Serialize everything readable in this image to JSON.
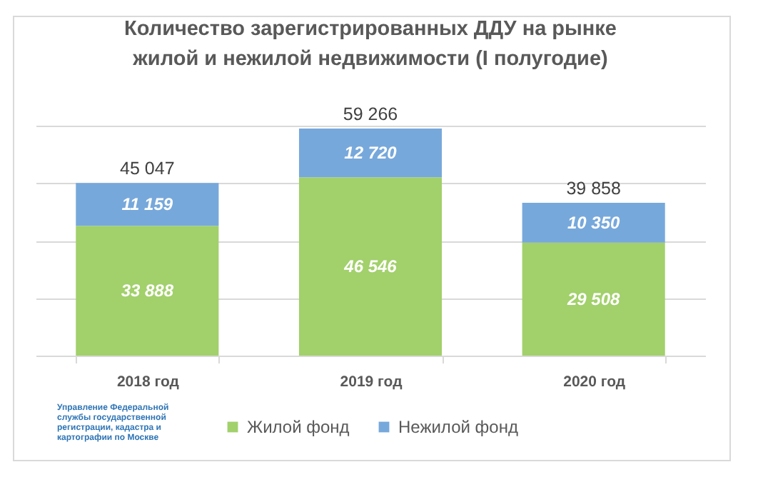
{
  "chart_data": {
    "type": "bar",
    "title": "Количество зарегистрированных ДДУ на рынке жилой и нежилой недвижимости (I полугодие)",
    "categories": [
      "2018 год",
      "2019 год",
      "2020 год"
    ],
    "stacked": true,
    "series": [
      {
        "name": "Жилой фонд",
        "color": "#a2d06b",
        "values": [
          33888,
          46546,
          29508
        ],
        "value_labels": [
          "33 888",
          "46 546",
          "29 508"
        ]
      },
      {
        "name": "Нежилой фонд",
        "color": "#77a8db",
        "values": [
          11159,
          12720,
          10350
        ],
        "value_labels": [
          "11 159",
          "12 720",
          "10 350"
        ]
      }
    ],
    "totals": [
      "45 047",
      "59 266",
      "39 858"
    ],
    "ylim": [
      0,
      60000
    ],
    "yticks": [
      0,
      15000,
      30000,
      45000,
      60000
    ],
    "tick_labels": "x",
    "grid": "y",
    "legend": "bottom",
    "annotations": [
      "Управление Федеральной службы государственной регистрации, кадастра и картографии по Москве"
    ]
  }
}
